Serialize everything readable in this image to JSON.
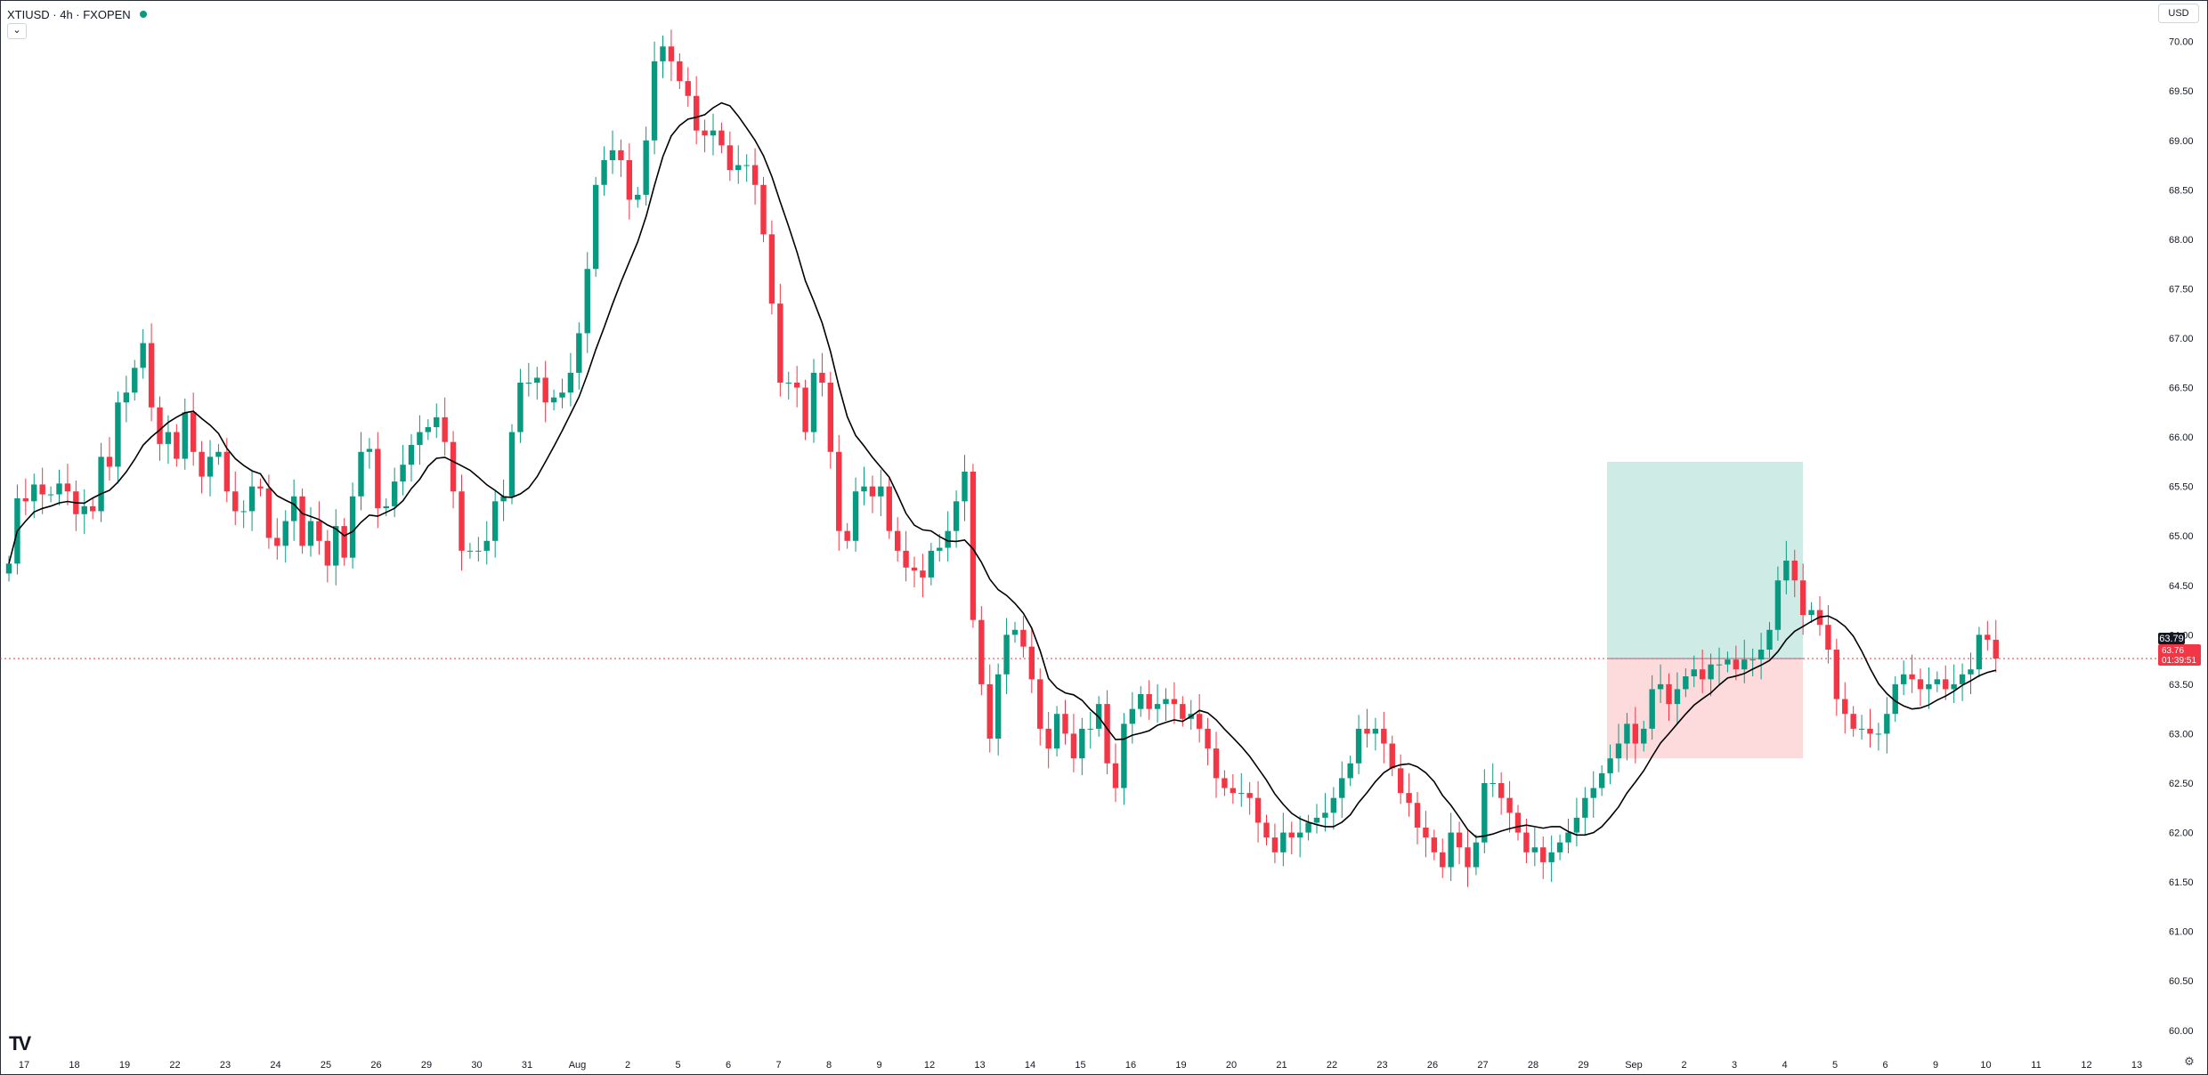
{
  "header": {
    "symbol_title": "XTIUSD · 4h · FXOPEN",
    "collapse_icon": "⌄",
    "currency": "USD"
  },
  "colors": {
    "up": "#089981",
    "down": "#f23645",
    "ma_line": "#000000",
    "target_zone": "#089981",
    "stop_zone": "#f23645",
    "price_label_bg": "#f23645",
    "last_close_bg": "#131722"
  },
  "chart_data": {
    "type": "candlestick",
    "title": "",
    "xlabel": "",
    "ylabel": "",
    "ylim": [
      59.8,
      70.15
    ],
    "y_ticks": [
      "70.00",
      "69.50",
      "69.00",
      "68.50",
      "68.00",
      "67.50",
      "67.00",
      "66.50",
      "66.00",
      "65.50",
      "65.00",
      "64.50",
      "64.00",
      "63.50",
      "63.00",
      "62.50",
      "62.00",
      "61.50",
      "61.00",
      "60.50",
      "60.00"
    ],
    "x_ticks": [
      "17",
      "18",
      "19",
      "22",
      "23",
      "24",
      "25",
      "26",
      "29",
      "30",
      "31",
      "Aug",
      "2",
      "5",
      "6",
      "7",
      "8",
      "9",
      "12",
      "13",
      "14",
      "15",
      "16",
      "19",
      "20",
      "21",
      "22",
      "23",
      "26",
      "27",
      "28",
      "29",
      "Sep",
      "2",
      "3",
      "4",
      "5",
      "6",
      "9",
      "10",
      "11",
      "12",
      "13"
    ],
    "bars_per_day": 6,
    "closes": [
      64.72,
      65.38,
      65.35,
      65.52,
      65.42,
      65.42,
      65.53,
      65.45,
      65.22,
      65.3,
      65.25,
      65.8,
      65.7,
      66.35,
      66.45,
      66.7,
      66.95,
      66.3,
      65.93,
      66.05,
      65.78,
      66.25,
      65.85,
      65.6,
      65.8,
      65.85,
      65.45,
      65.25,
      65.25,
      65.5,
      65.48,
      64.98,
      64.9,
      65.15,
      65.4,
      64.9,
      65.15,
      64.95,
      64.7,
      65.1,
      64.78,
      65.4,
      65.85,
      65.88,
      65.28,
      65.3,
      65.55,
      65.72,
      65.92,
      66.05,
      66.1,
      66.2,
      65.95,
      65.45,
      64.85,
      64.85,
      64.85,
      64.95,
      65.35,
      65.4,
      66.05,
      66.55,
      66.55,
      66.6,
      66.35,
      66.4,
      66.45,
      66.65,
      67.05,
      67.7,
      68.55,
      68.8,
      68.9,
      68.8,
      68.4,
      68.45,
      69.0,
      69.8,
      69.95,
      69.8,
      69.6,
      69.45,
      69.1,
      69.05,
      69.1,
      68.95,
      68.7,
      68.75,
      68.75,
      68.55,
      68.05,
      67.35,
      66.55,
      66.55,
      66.5,
      66.05,
      66.65,
      66.55,
      65.85,
      65.05,
      64.95,
      65.45,
      65.5,
      65.4,
      65.5,
      65.05,
      64.85,
      64.68,
      64.65,
      64.58,
      64.85,
      64.88,
      65.05,
      65.35,
      65.65,
      64.15,
      63.5,
      62.95,
      63.6,
      64.0,
      64.05,
      63.88,
      63.55,
      63.05,
      62.85,
      63.2,
      63.0,
      62.75,
      63.05,
      63.05,
      63.3,
      62.7,
      62.45,
      63.1,
      63.25,
      63.4,
      63.25,
      63.3,
      63.35,
      63.3,
      63.15,
      63.2,
      63.05,
      62.85,
      62.55,
      62.45,
      62.4,
      62.4,
      62.35,
      62.1,
      61.95,
      61.8,
      62.0,
      61.95,
      62.0,
      62.1,
      62.15,
      62.2,
      62.35,
      62.55,
      62.7,
      63.05,
      63.0,
      63.05,
      62.9,
      62.65,
      62.4,
      62.3,
      62.05,
      61.95,
      61.8,
      61.65,
      62.0,
      61.85,
      61.65,
      61.9,
      62.5,
      62.5,
      62.35,
      62.2,
      62.0,
      61.8,
      61.85,
      61.7,
      61.8,
      61.9,
      62.0,
      62.15,
      62.35,
      62.45,
      62.6,
      62.75,
      62.9,
      63.1,
      62.9,
      63.05,
      63.45,
      63.5,
      63.3,
      63.45,
      63.58,
      63.65,
      63.55,
      63.7,
      63.7,
      63.75,
      63.65,
      63.75,
      63.75,
      63.85,
      64.05,
      64.55,
      64.75,
      64.55,
      64.2,
      64.25,
      64.1,
      63.85,
      63.35,
      63.2,
      63.05,
      63.05,
      63.0,
      63.0,
      63.2,
      63.5,
      63.6,
      63.55,
      63.45,
      63.5,
      63.55,
      63.45,
      63.5,
      63.6,
      63.65,
      64.0,
      63.95,
      63.76
    ]
  },
  "last_close_label": "63.79",
  "current_price_label": "63.76",
  "countdown_label": "01:39:51",
  "position": {
    "entry": 63.76,
    "target": 65.75,
    "stop": 62.75
  },
  "logo_text": "TV",
  "settings_icon": "⚙"
}
